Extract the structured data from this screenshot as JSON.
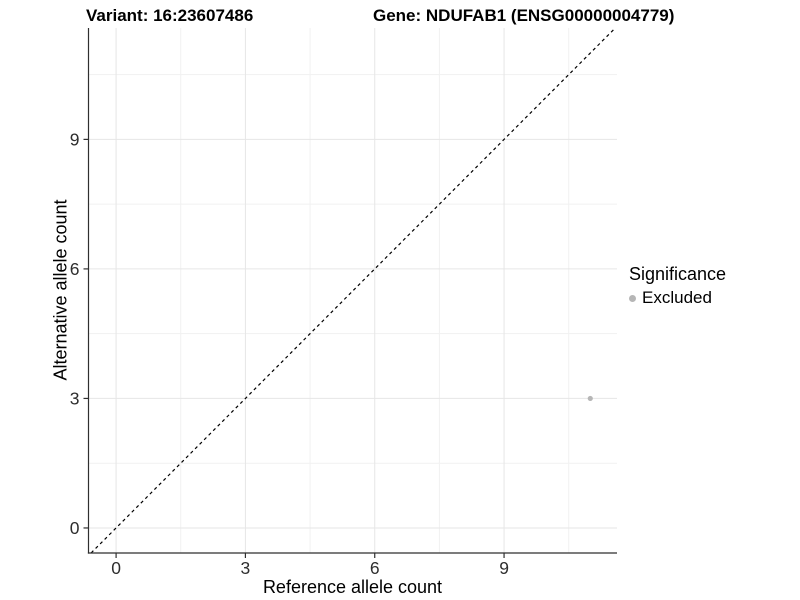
{
  "chart_data": {
    "type": "scatter",
    "titles": {
      "left": "Variant: 16:23607486",
      "right": "Gene: NDUFAB1 (ENSG00000004779)"
    },
    "xlabel": "Reference allele count",
    "ylabel": "Alternative allele count",
    "xlim": [
      -0.64,
      11.62
    ],
    "ylim": [
      -0.58,
      11.58
    ],
    "xticks": [
      0,
      3,
      6,
      9
    ],
    "yticks": [
      0,
      3,
      6,
      9
    ],
    "x_minor_ticks": [
      1.5,
      4.5,
      7.5,
      10.5
    ],
    "y_minor_ticks": [
      1.5,
      4.5,
      7.5,
      10.5
    ],
    "grid": true,
    "identity_line": {
      "show": true,
      "style": "dashed",
      "slope": 1,
      "intercept": 0
    },
    "series": [
      {
        "name": "Excluded",
        "color": "#b6b6b6",
        "points": [
          {
            "x": 11,
            "y": 3
          }
        ]
      }
    ],
    "legend": {
      "title": "Significance",
      "position": "right",
      "entries": [
        {
          "label": "Excluded",
          "color": "#b6b6b6"
        }
      ]
    }
  },
  "colors": {
    "background": "#ffffff",
    "grid_major": "#e6e6e6",
    "grid_minor": "#f1f1f1",
    "axis_line": "#2f2f2f",
    "tick_mark": "#2f2f2f",
    "tick_label": "#2e2e2e",
    "identity_line": "#000000"
  }
}
